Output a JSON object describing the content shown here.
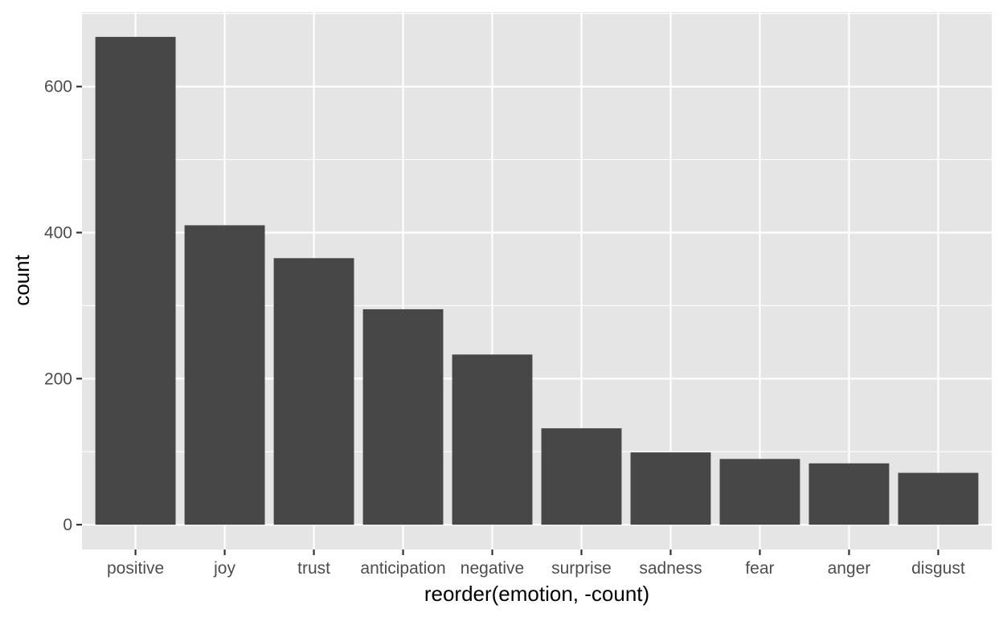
{
  "chart_data": {
    "type": "bar",
    "categories": [
      "positive",
      "joy",
      "trust",
      "anticipation",
      "negative",
      "surprise",
      "sadness",
      "fear",
      "anger",
      "disgust"
    ],
    "values": [
      668,
      410,
      365,
      295,
      233,
      132,
      99,
      90,
      84,
      71
    ],
    "title": "",
    "xlabel": "reorder(emotion, -count)",
    "ylabel": "count",
    "ylim": [
      -34,
      702
    ],
    "yticks": [
      0,
      200,
      400,
      600
    ],
    "ytick_labels": [
      "0",
      "200",
      "400",
      "600"
    ],
    "grid": true,
    "legend": "none",
    "colors": {
      "panel_background": "#e5e5e5",
      "grid": "#ffffff",
      "bar": "#474747",
      "tick_label": "#4d4d4d",
      "axis_title": "#000000"
    }
  }
}
